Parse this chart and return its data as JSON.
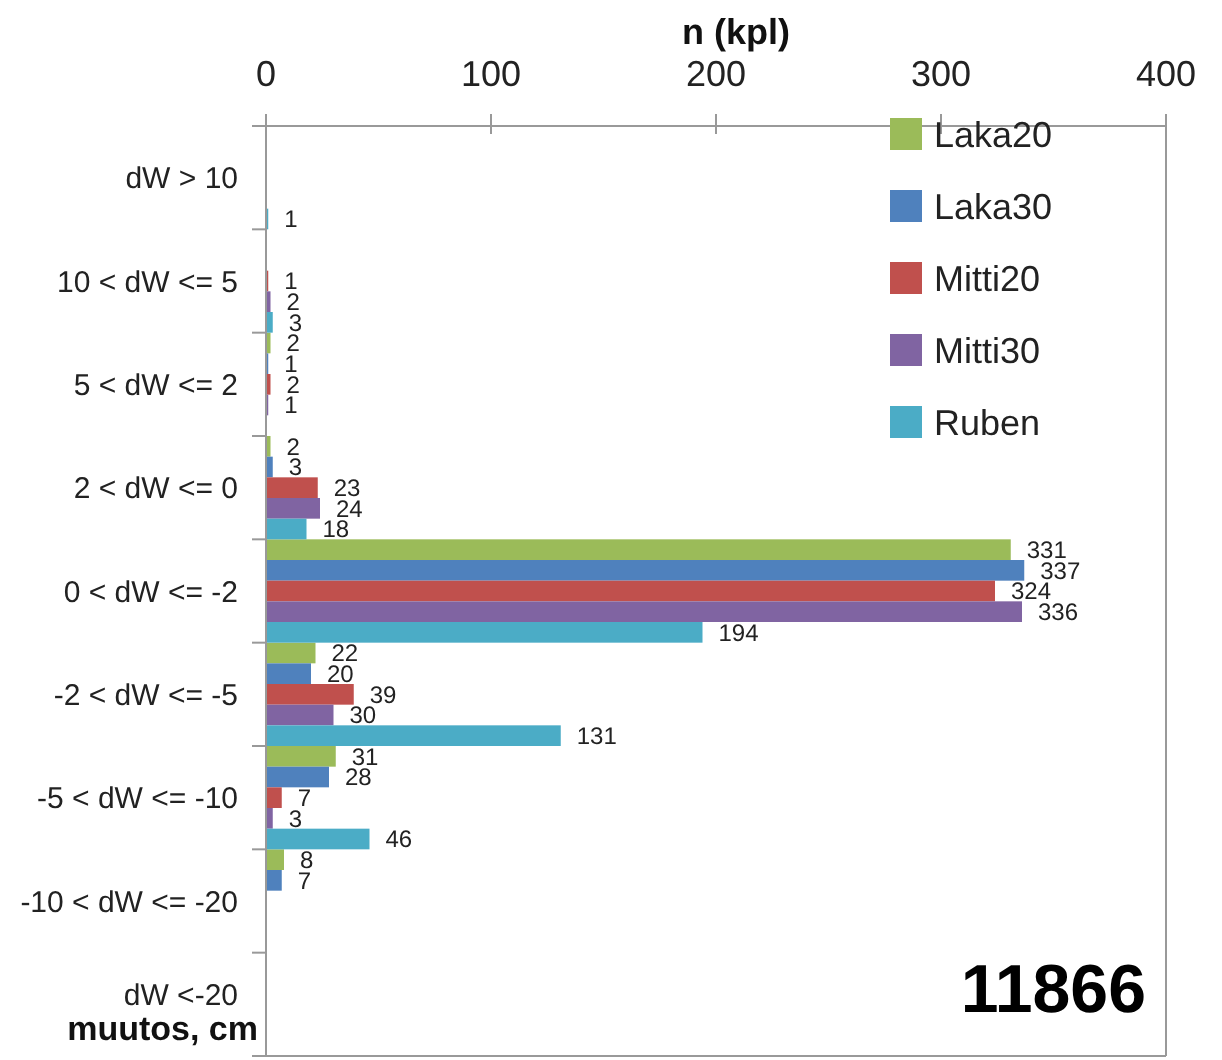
{
  "chart_data": {
    "type": "bar",
    "orientation": "horizontal",
    "xlabel": "n (kpl)",
    "ylabel": "muutos, cm",
    "categories": [
      "dW > 10",
      "10 < dW <= 5",
      "5 < dW <= 2",
      "2 < dW <= 0",
      "0 < dW <= -2",
      "-2 < dW <= -5",
      "-5 < dW <= -10",
      "-10 < dW <= -20",
      "dW <-20"
    ],
    "series": [
      {
        "name": "Laka20",
        "color": "#9bbb59",
        "values": [
          null,
          null,
          2,
          2,
          331,
          22,
          31,
          8,
          null
        ]
      },
      {
        "name": "Laka30",
        "color": "#4f81bd",
        "values": [
          null,
          null,
          1,
          3,
          337,
          20,
          28,
          7,
          null
        ]
      },
      {
        "name": "Mitti20",
        "color": "#c0504d",
        "values": [
          null,
          1,
          2,
          23,
          324,
          39,
          7,
          null,
          null
        ]
      },
      {
        "name": "Mitti30",
        "color": "#8064a2",
        "values": [
          null,
          2,
          1,
          24,
          336,
          30,
          3,
          null,
          null
        ]
      },
      {
        "name": "Ruben",
        "color": "#4bacc6",
        "values": [
          1,
          3,
          null,
          18,
          194,
          131,
          46,
          null,
          null
        ]
      }
    ],
    "xlim": [
      0,
      400
    ],
    "xticks": [
      0,
      100,
      200,
      300,
      400
    ],
    "grid": false,
    "legend": "top right",
    "data_labels": true,
    "annotations": [
      "11866"
    ]
  }
}
